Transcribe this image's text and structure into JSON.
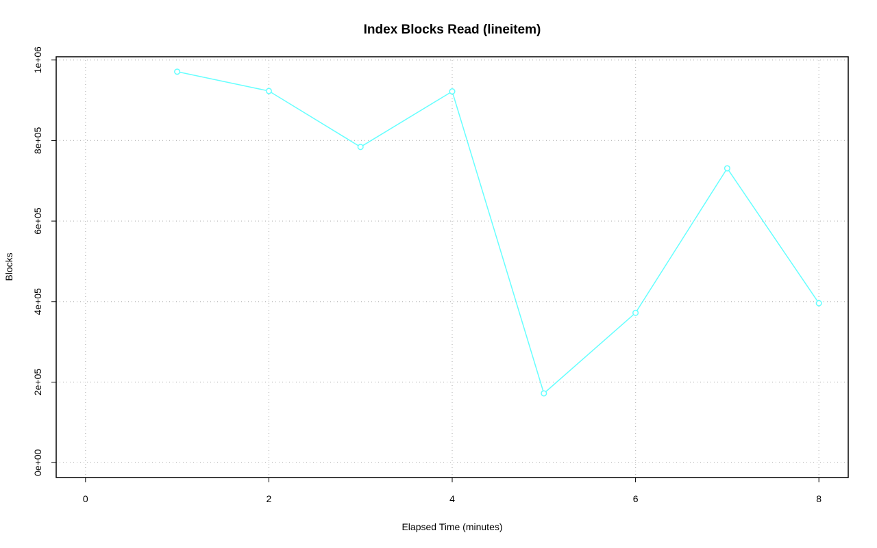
{
  "chart_data": {
    "type": "line",
    "title": "Index Blocks Read (lineitem)",
    "x_label": "Elapsed Time (minutes)",
    "y_label": "Blocks",
    "x": [
      1,
      2,
      3,
      4,
      5,
      6,
      7,
      8
    ],
    "series": [
      {
        "name": "lineitem",
        "color": "#66ffff",
        "values": [
          971000,
          923000,
          784000,
          922000,
          172000,
          372000,
          731000,
          396000
        ]
      }
    ],
    "xlim": [
      -0.32,
      8.32
    ],
    "xticks": [
      0,
      2,
      4,
      6,
      8
    ],
    "ylim": [
      -37000,
      1008000
    ],
    "yticks": [
      {
        "value": 0,
        "label": "0e+00"
      },
      {
        "value": 200000,
        "label": "2e+05"
      },
      {
        "value": 400000,
        "label": "4e+05"
      },
      {
        "value": 600000,
        "label": "6e+05"
      },
      {
        "value": 800000,
        "label": "8e+05"
      },
      {
        "value": 1000000,
        "label": "1e+06"
      }
    ],
    "grid": true
  }
}
